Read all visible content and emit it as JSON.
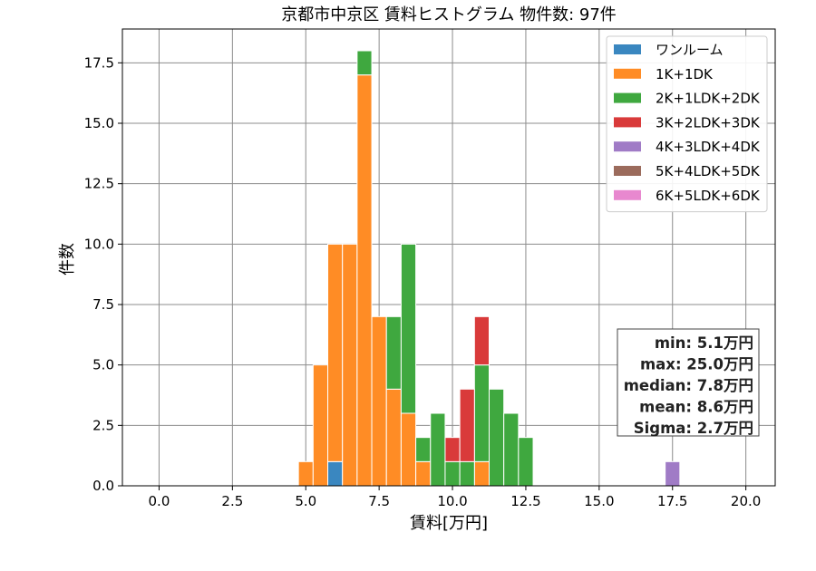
{
  "chart_data": {
    "type": "bar",
    "stacked": true,
    "title": "京都市中京区 賃料ヒストグラム  物件数: 97件",
    "xlabel": "賃料[万円]",
    "ylabel": "件数",
    "xlim": [
      -1.25,
      21.0
    ],
    "ylim": [
      0,
      18.9
    ],
    "xticks": [
      0.0,
      2.5,
      5.0,
      7.5,
      10.0,
      12.5,
      15.0,
      17.5,
      20.0
    ],
    "xtick_labels": [
      "0.0",
      "2.5",
      "5.0",
      "7.5",
      "10.0",
      "12.5",
      "15.0",
      "17.5",
      "20.0"
    ],
    "yticks": [
      0.0,
      2.5,
      5.0,
      7.5,
      10.0,
      12.5,
      15.0,
      17.5
    ],
    "ytick_labels": [
      "0.0",
      "2.5",
      "5.0",
      "7.5",
      "10.0",
      "12.5",
      "15.0",
      "17.5"
    ],
    "grid": true,
    "legend_position": "top-right",
    "bin_width": 0.5,
    "bins": [
      5.0,
      5.5,
      6.0,
      6.5,
      7.0,
      7.5,
      8.0,
      8.5,
      9.0,
      9.5,
      10.0,
      10.5,
      11.0,
      11.5,
      12.0,
      12.5,
      17.5
    ],
    "series": [
      {
        "name": "ワンルーム",
        "color": "#3a87c0",
        "values": [
          0,
          0,
          1,
          0,
          0,
          0,
          0,
          0,
          0,
          0,
          0,
          0,
          0,
          0,
          0,
          0,
          0
        ]
      },
      {
        "name": "1K+1DK",
        "color": "#ff8c25",
        "values": [
          1,
          5,
          9,
          10,
          17,
          7,
          4,
          3,
          1,
          0,
          0,
          0,
          1,
          0,
          0,
          0,
          0
        ]
      },
      {
        "name": "2K+1LDK+2DK",
        "color": "#3fa83f",
        "values": [
          0,
          0,
          0,
          0,
          1,
          0,
          3,
          7,
          1,
          3,
          1,
          1,
          4,
          4,
          3,
          2,
          0
        ]
      },
      {
        "name": "3K+2LDK+3DK",
        "color": "#d93a3a",
        "values": [
          0,
          0,
          0,
          0,
          0,
          0,
          0,
          0,
          0,
          0,
          1,
          3,
          2,
          0,
          0,
          0,
          0
        ]
      },
      {
        "name": "4K+3LDK+4DK",
        "color": "#a07bc6",
        "values": [
          0,
          0,
          0,
          0,
          0,
          0,
          0,
          0,
          0,
          0,
          0,
          0,
          0,
          0,
          0,
          0,
          1
        ]
      },
      {
        "name": "5K+4LDK+5DK",
        "color": "#9b6b5c",
        "values": [
          0,
          0,
          0,
          0,
          0,
          0,
          0,
          0,
          0,
          0,
          0,
          0,
          0,
          0,
          0,
          0,
          0
        ]
      },
      {
        "name": "6K+5LDK+6DK",
        "color": "#e888cf",
        "values": [
          0,
          0,
          0,
          0,
          0,
          0,
          0,
          0,
          0,
          0,
          0,
          0,
          0,
          0,
          0,
          0,
          0
        ]
      }
    ],
    "stats_box": [
      "min: 5.1万円",
      "max: 25.0万円",
      "median: 7.8万円",
      "mean: 8.6万円",
      "Sigma: 2.7万円"
    ]
  }
}
